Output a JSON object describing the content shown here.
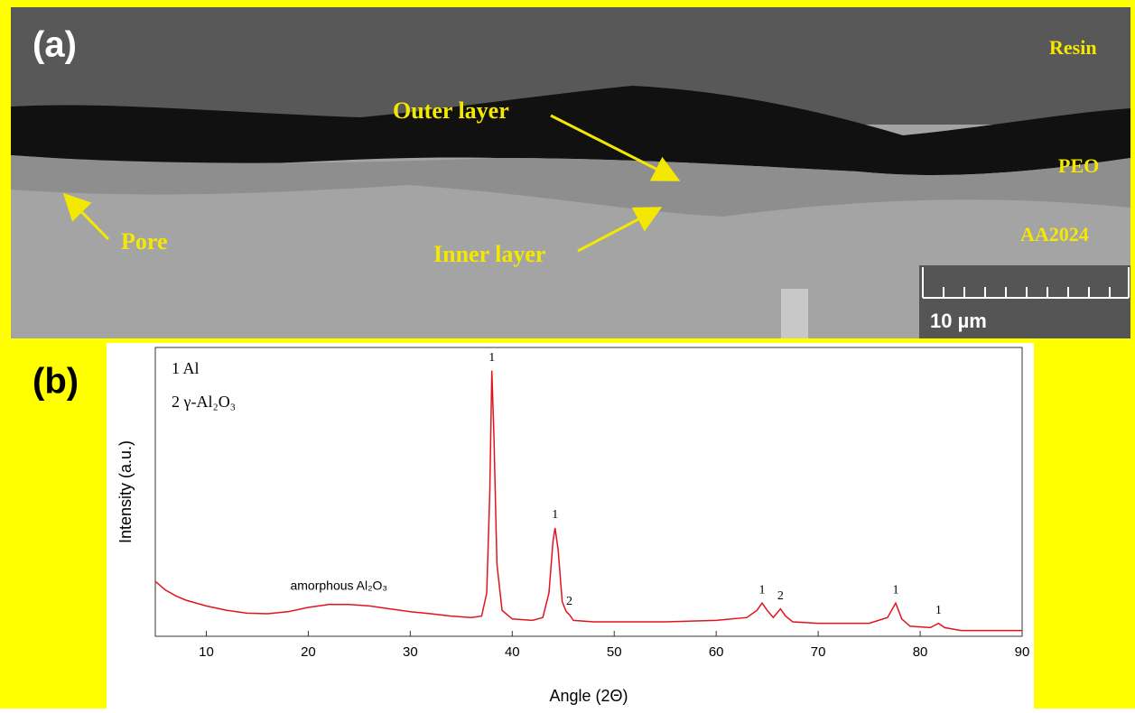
{
  "panel_a": {
    "tag": "(a)",
    "labels": {
      "resin": "Resin",
      "outer": "Outer layer",
      "peo": "PEO",
      "pore": "Pore",
      "inner": "Inner layer",
      "substrate": "AA2024"
    },
    "scale_bar": "10 µm"
  },
  "chart_data": {
    "type": "line",
    "tag": "(b)",
    "x_label": "Angle (2Θ)",
    "y_label": "Intensity (a.u.)",
    "legend_text": [
      "1 Al",
      "2 γ-Al₂O₃"
    ],
    "color": "#e0141e",
    "x": [
      5,
      6,
      7,
      8,
      10,
      12,
      14,
      16,
      18,
      20,
      22,
      24,
      26,
      28,
      30,
      32,
      34,
      36,
      37,
      37.5,
      37.8,
      38,
      38.2,
      38.5,
      39,
      40,
      42,
      43,
      43.6,
      44,
      44.2,
      44.5,
      44.9,
      45.3,
      45.6,
      46,
      48,
      50,
      55,
      60,
      63,
      64,
      64.5,
      65,
      65.6,
      66.3,
      66.8,
      67.5,
      70,
      75,
      76.8,
      77.6,
      78.2,
      79,
      81,
      81.8,
      82.4,
      84,
      90
    ],
    "values": [
      19,
      16,
      14,
      12.5,
      10.5,
      9,
      8,
      7.8,
      8.5,
      10,
      11,
      11,
      10.5,
      9.5,
      8.5,
      7.8,
      7,
      6.5,
      7,
      15,
      50,
      92,
      70,
      25,
      9,
      6,
      5.5,
      6.5,
      15,
      33,
      37.5,
      30,
      12,
      8.5,
      7.5,
      5.5,
      5,
      5,
      5,
      5.5,
      6.5,
      9,
      11.5,
      9,
      6.5,
      9.5,
      7,
      5,
      4.5,
      4.5,
      6.5,
      11.5,
      6,
      3.5,
      3,
      4.5,
      3,
      2,
      2
    ],
    "peaks": [
      {
        "label": "1",
        "x": 38
      },
      {
        "label": "1",
        "x": 44.2
      },
      {
        "label": "2",
        "x": 45.6
      },
      {
        "label": "1",
        "x": 64.5
      },
      {
        "label": "2",
        "x": 66.3
      },
      {
        "label": "1",
        "x": 77.6
      },
      {
        "label": "1",
        "x": 81.8
      }
    ],
    "annotation": {
      "text": "amorphous Al₂O₃",
      "x": 23
    },
    "xlim": [
      5,
      90
    ],
    "ylim": [
      0,
      100
    ],
    "xticks": [
      10,
      20,
      30,
      40,
      50,
      60,
      70,
      80,
      90
    ]
  }
}
